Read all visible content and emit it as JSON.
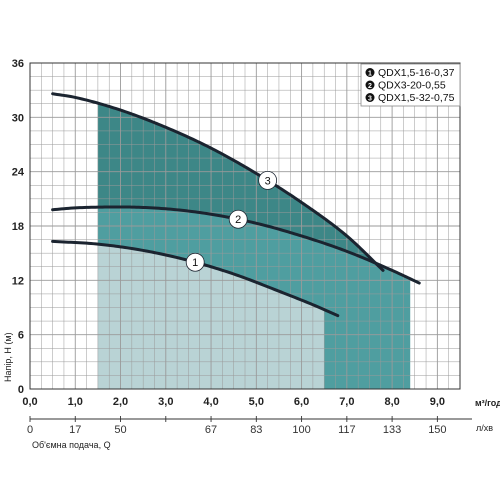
{
  "chart_data": {
    "type": "line",
    "xlabel": "Об'ємна подача, Q",
    "ylabel": "Напір, H (м)",
    "x_unit": "м³/год",
    "x2_unit": "л/хв",
    "xlim": [
      0,
      9.5
    ],
    "ylim": [
      0,
      36
    ],
    "x_ticks": [
      "0,0",
      "1,0",
      "2,0",
      "3,0",
      "4,0",
      "5,0",
      "6,0",
      "7,0",
      "8,0",
      "9,0"
    ],
    "x_tick_values": [
      0,
      1,
      2,
      3,
      4,
      5,
      6,
      7,
      8,
      9
    ],
    "x2_ticks": [
      "0",
      "17",
      "50",
      "67",
      "83",
      "100",
      "117",
      "133",
      "150"
    ],
    "x2_tick_positions": [
      0,
      1,
      2,
      4,
      5,
      6,
      7,
      8,
      9
    ],
    "y_ticks": [
      "0",
      "6",
      "12",
      "18",
      "24",
      "30",
      "36"
    ],
    "y_tick_values": [
      0,
      6,
      12,
      18,
      24,
      30,
      36
    ],
    "grid": true,
    "legend_position": "top-right",
    "series": [
      {
        "name": "QDX1,5-16-0,37",
        "marker": "1",
        "x": [
          0.5,
          1.5,
          2.5,
          3.5,
          4.5,
          5.5,
          6.3,
          6.8
        ],
        "y": [
          16.3,
          16.0,
          15.3,
          14.2,
          12.7,
          10.8,
          9.2,
          8.1
        ],
        "operating_range": [
          1.5,
          6.5
        ],
        "label_at": 3.65
      },
      {
        "name": "QDX3-20-0,55",
        "marker": "2",
        "x": [
          0.5,
          1.0,
          2.0,
          3.0,
          4.0,
          5.0,
          6.0,
          7.0,
          8.0,
          8.6
        ],
        "y": [
          19.8,
          20.0,
          20.1,
          19.9,
          19.3,
          18.3,
          16.9,
          15.2,
          13.1,
          11.7
        ],
        "operating_range": [
          6.5,
          8.4
        ],
        "label_at": 4.6
      },
      {
        "name": "QDX1,5-32-0,75",
        "marker": "3",
        "x": [
          0.5,
          1.0,
          2.0,
          3.0,
          4.0,
          5.0,
          6.0,
          7.0,
          7.8
        ],
        "y": [
          32.6,
          32.2,
          30.8,
          28.9,
          26.6,
          23.8,
          20.6,
          16.9,
          13.1
        ],
        "operating_range": [
          1.5,
          7.5
        ],
        "label_at": 5.25
      }
    ],
    "colors": {
      "curve": "#1b2430",
      "fill_light": "#b9d3d5",
      "fill_dark": "#4f9ea0",
      "fill_top": "#3d8787",
      "grid": "#9a9a9a",
      "marker_bg": "#ffffff"
    }
  }
}
